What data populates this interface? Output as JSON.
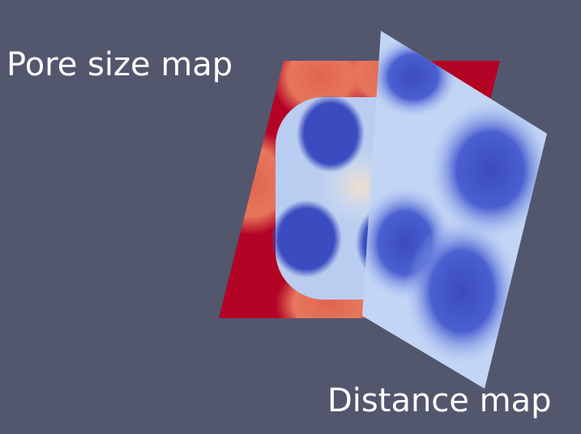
{
  "labels": {
    "pore_size_map": "Pore size map",
    "distance_map": "Distance map"
  }
}
